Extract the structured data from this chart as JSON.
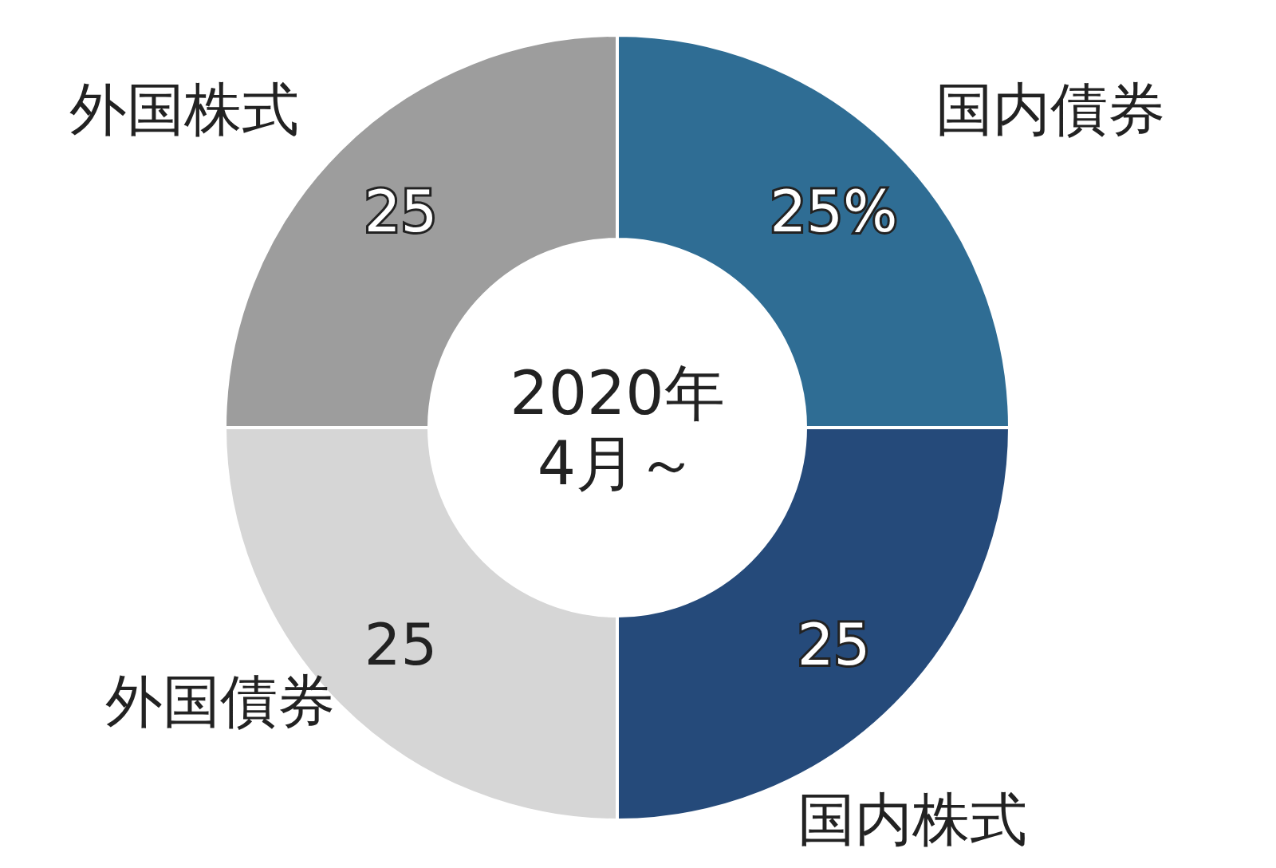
{
  "chart_data": {
    "type": "donut",
    "title": "2020年\n4月～",
    "categories": [
      "国内債券",
      "国内株式",
      "外国債券",
      "外国株式"
    ],
    "values": [
      25,
      25,
      25,
      25
    ],
    "colors": [
      "#2f6d94",
      "#254a7a",
      "#d6d6d6",
      "#9d9d9d"
    ],
    "value_labels": [
      "25%",
      "25",
      "25",
      "25"
    ]
  }
}
